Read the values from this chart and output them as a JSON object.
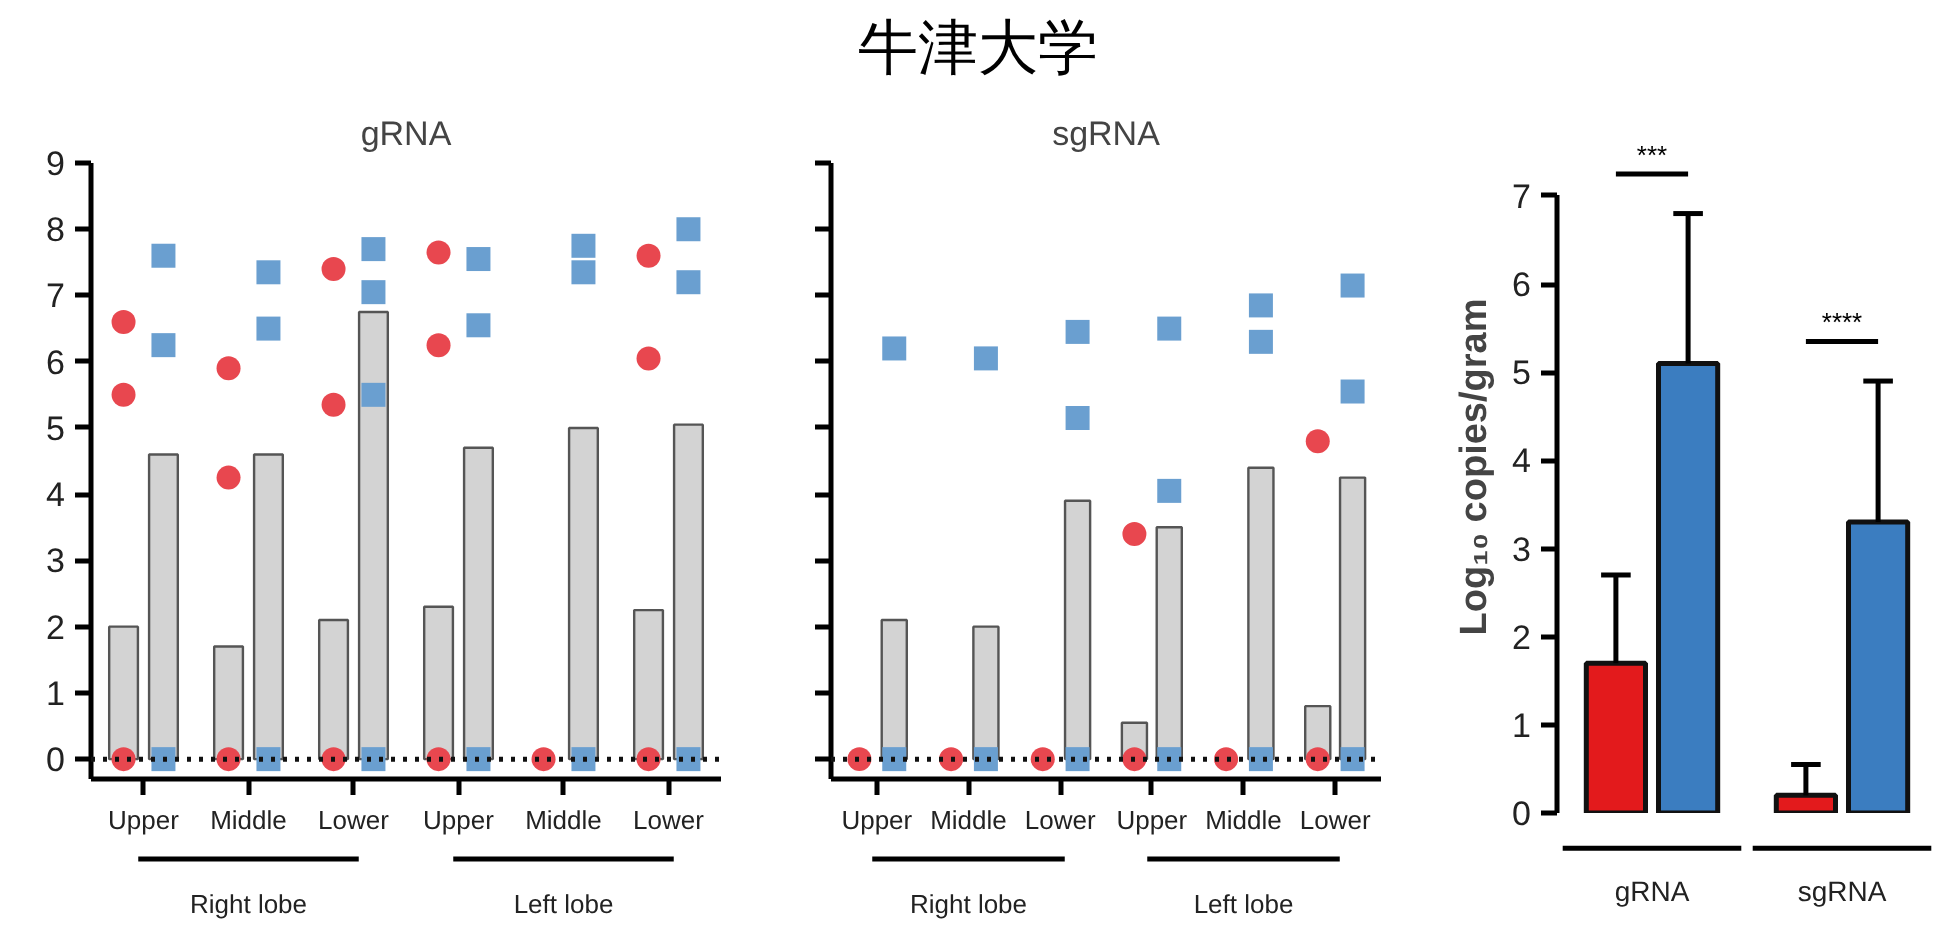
{
  "chart_data": [
    {
      "type": "other",
      "title": "牛津大学"
    },
    {
      "type": "bar",
      "title": "gRNA",
      "categories": [
        "Upper",
        "Middle",
        "Lower",
        "Upper",
        "Middle",
        "Lower"
      ],
      "ylim": [
        -0.3,
        9
      ],
      "yticks": [
        0,
        1,
        2,
        3,
        4,
        5,
        6,
        7,
        8,
        9
      ],
      "series": [
        {
          "type": "bar",
          "color": "#d3d3d3",
          "values": [
            2.0,
            1.7,
            2.1,
            2.3,
            null,
            2.25
          ]
        },
        {
          "type": "bar",
          "color": "#d3d3d3",
          "values": [
            4.6,
            4.6,
            6.75,
            4.7,
            5.0,
            5.05
          ]
        },
        {
          "type": "scatter",
          "marker": "circle",
          "color": "#e8474f",
          "values": [
            6.6,
            5.9,
            7.4,
            7.65,
            null,
            7.6
          ]
        },
        {
          "type": "scatter",
          "marker": "circle",
          "color": "#e8474f",
          "values": [
            5.5,
            4.25,
            5.35,
            6.25,
            null,
            6.05
          ]
        },
        {
          "type": "scatter",
          "marker": "circle",
          "color": "#e8474f",
          "values": [
            0,
            0,
            0,
            0,
            0,
            0
          ]
        },
        {
          "type": "scatter",
          "marker": "square",
          "color": "#6a9fd0",
          "values": [
            7.6,
            7.35,
            7.7,
            7.55,
            7.75,
            8.0
          ]
        },
        {
          "type": "scatter",
          "marker": "square",
          "color": "#6a9fd0",
          "values": [
            6.25,
            6.5,
            7.05,
            6.55,
            7.35,
            7.2
          ]
        },
        {
          "type": "scatter",
          "marker": "square",
          "color": "#6a9fd0",
          "values": [
            null,
            null,
            5.5,
            null,
            null,
            null
          ]
        },
        {
          "type": "scatter",
          "marker": "square",
          "color": "#6a9fd0",
          "values": [
            0,
            0,
            0,
            0,
            0,
            0
          ]
        }
      ],
      "ref_lines": [
        {
          "axis": "y",
          "value": 0,
          "line_style": "dotted"
        }
      ],
      "annotations": [
        "Right lobe",
        "Left lobe"
      ]
    },
    {
      "type": "bar",
      "title": "sgRNA",
      "categories": [
        "Upper",
        "Middle",
        "Lower",
        "Upper",
        "Middle",
        "Lower"
      ],
      "ylim": [
        -0.3,
        9
      ],
      "tick_labels": "x",
      "yticks": [
        {
          "value": 0,
          "label": null
        },
        {
          "value": 1,
          "label": null
        },
        {
          "value": 2,
          "label": null
        },
        {
          "value": 3,
          "label": null
        },
        {
          "value": 4,
          "label": null
        },
        {
          "value": 5,
          "label": null
        },
        {
          "value": 6,
          "label": null
        },
        {
          "value": 7,
          "label": null
        },
        {
          "value": 8,
          "label": null
        },
        {
          "value": 9,
          "label": null
        }
      ],
      "series": [
        {
          "type": "bar",
          "color": "#d3d3d3",
          "values": [
            null,
            null,
            null,
            0.55,
            null,
            0.8
          ]
        },
        {
          "type": "bar",
          "color": "#d3d3d3",
          "values": [
            2.1,
            2.0,
            3.9,
            3.5,
            4.4,
            4.25
          ]
        },
        {
          "type": "scatter",
          "marker": "circle",
          "color": "#e8474f",
          "values": [
            null,
            null,
            null,
            3.4,
            null,
            4.8
          ]
        },
        {
          "type": "scatter",
          "marker": "circle",
          "color": "#e8474f",
          "values": [
            0,
            0,
            0,
            0,
            0,
            0
          ]
        },
        {
          "type": "scatter",
          "marker": "square",
          "color": "#6a9fd0",
          "values": [
            6.2,
            6.05,
            6.45,
            6.5,
            6.85,
            7.15
          ]
        },
        {
          "type": "scatter",
          "marker": "square",
          "color": "#6a9fd0",
          "values": [
            null,
            null,
            5.15,
            4.05,
            6.3,
            5.55
          ]
        },
        {
          "type": "scatter",
          "marker": "square",
          "color": "#6a9fd0",
          "values": [
            0,
            0,
            0,
            0,
            0,
            0
          ]
        }
      ],
      "ref_lines": [
        {
          "axis": "y",
          "value": 0,
          "line_style": "dotted"
        }
      ],
      "annotations": [
        "Right lobe",
        "Left lobe"
      ]
    },
    {
      "type": "bar",
      "categories": [
        "gRNA",
        "sgRNA"
      ],
      "ylabel": "Log₁₀ copies/gram",
      "ylim": [
        0,
        7
      ],
      "yticks": [
        0,
        1,
        2,
        3,
        4,
        5,
        6,
        7
      ],
      "series": [
        {
          "color": "#e31a1c",
          "values": [
            1.7,
            0.2
          ],
          "errors": [
            [
              1.7,
              2.7
            ],
            [
              0.2,
              0.55
            ]
          ]
        },
        {
          "color": "#3b7dc0",
          "values": [
            5.1,
            3.3
          ],
          "errors": [
            [
              5.1,
              6.8
            ],
            [
              3.3,
              4.9
            ]
          ]
        }
      ],
      "annotations": [
        "***",
        "****"
      ]
    }
  ]
}
